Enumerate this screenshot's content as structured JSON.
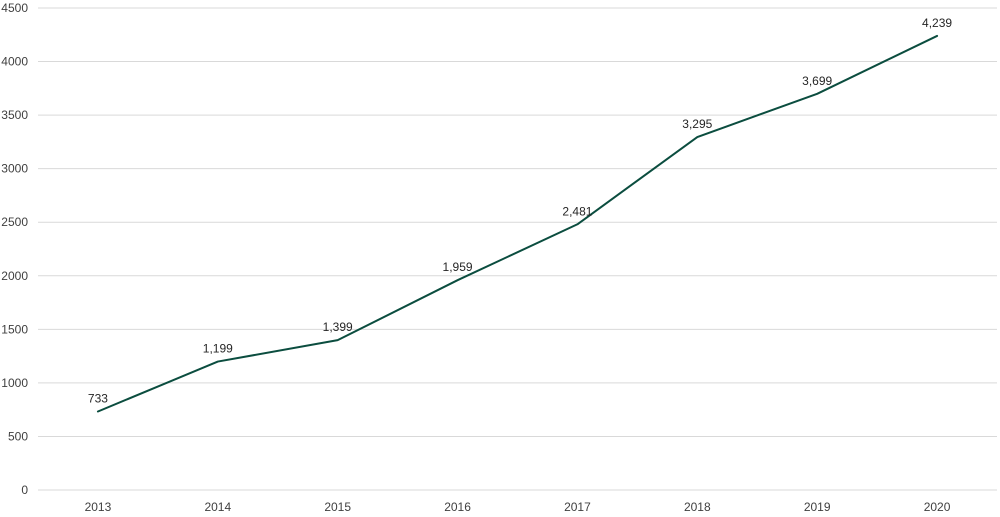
{
  "chart_data": {
    "type": "line",
    "title": "",
    "xlabel": "",
    "ylabel": "",
    "categories": [
      "2013",
      "2014",
      "2015",
      "2016",
      "2017",
      "2018",
      "2019",
      "2020"
    ],
    "series": [
      {
        "values": [
          733,
          1199,
          1399,
          1959,
          2481,
          3295,
          3699,
          4239
        ],
        "data_labels": [
          "733",
          "1,199",
          "1,399",
          "1,959",
          "2,481",
          "3,295",
          "3,699",
          "4,239"
        ],
        "color": "#0b4d3f"
      }
    ],
    "ylim": [
      0,
      4500
    ],
    "y_ticks": [
      0,
      500,
      1000,
      1500,
      2000,
      2500,
      3000,
      3500,
      4000,
      4500
    ],
    "grid": true,
    "legend": "none"
  }
}
